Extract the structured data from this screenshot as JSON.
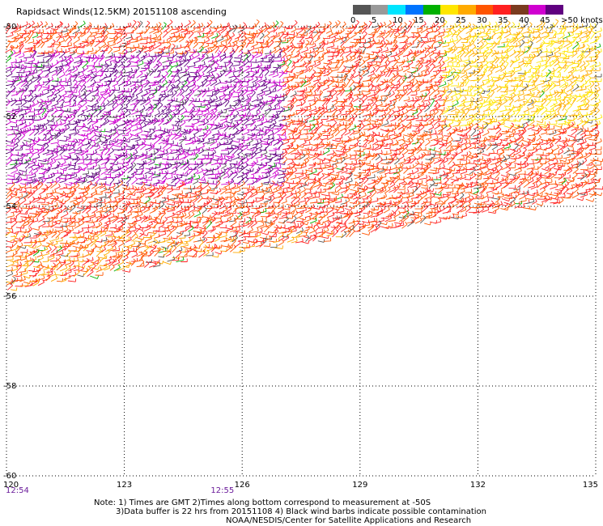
{
  "title": "Rapidsact Winds(12.5KM) 20151108 ascending",
  "legend": {
    "labels": [
      "0",
      "5",
      "10",
      "15",
      "20",
      "25",
      "30",
      "35",
      "40",
      "45",
      ">50 knots"
    ],
    "colors": [
      "#555555",
      "#999999",
      "#00e5ff",
      "#0074ff",
      "#00b000",
      "#ffe600",
      "#ffaa00",
      "#ff5500",
      "#ff2020",
      "#7a3b1f",
      "#d000d0",
      "#600080"
    ]
  },
  "axes": {
    "lon_ticks": [
      "120",
      "123",
      "126",
      "129",
      "132",
      "135"
    ],
    "lat_ticks": [
      "-50",
      "-52",
      "-54",
      "-56",
      "-58",
      "-60"
    ],
    "lon_range": [
      120,
      135
    ],
    "lat_range": [
      -60,
      -50
    ]
  },
  "times": [
    {
      "label": "12:54",
      "lon": 120
    },
    {
      "label": "12:55",
      "lon": 125.2
    }
  ],
  "notes": [
    "Note: 1) Times are GMT 2)Times along bottom correspond to measurement at -50S",
    "3)Data buffer is 22 hrs from 20151108 4) Black wind barbs indicate possible contamination",
    "NOAA/NESDIS/Center for Satellite Applications and Research"
  ],
  "swath_boundary": [
    {
      "lon": 120.0,
      "lat": -55.9
    },
    {
      "lon": 122.0,
      "lat": -55.6
    },
    {
      "lon": 124.0,
      "lat": -55.3
    },
    {
      "lon": 126.0,
      "lat": -55.0
    },
    {
      "lon": 128.0,
      "lat": -54.8
    },
    {
      "lon": 130.0,
      "lat": -54.5
    },
    {
      "lon": 132.0,
      "lat": -54.2
    },
    {
      "lon": 134.0,
      "lat": -53.95
    },
    {
      "lon": 135.0,
      "lat": -53.8
    }
  ]
}
